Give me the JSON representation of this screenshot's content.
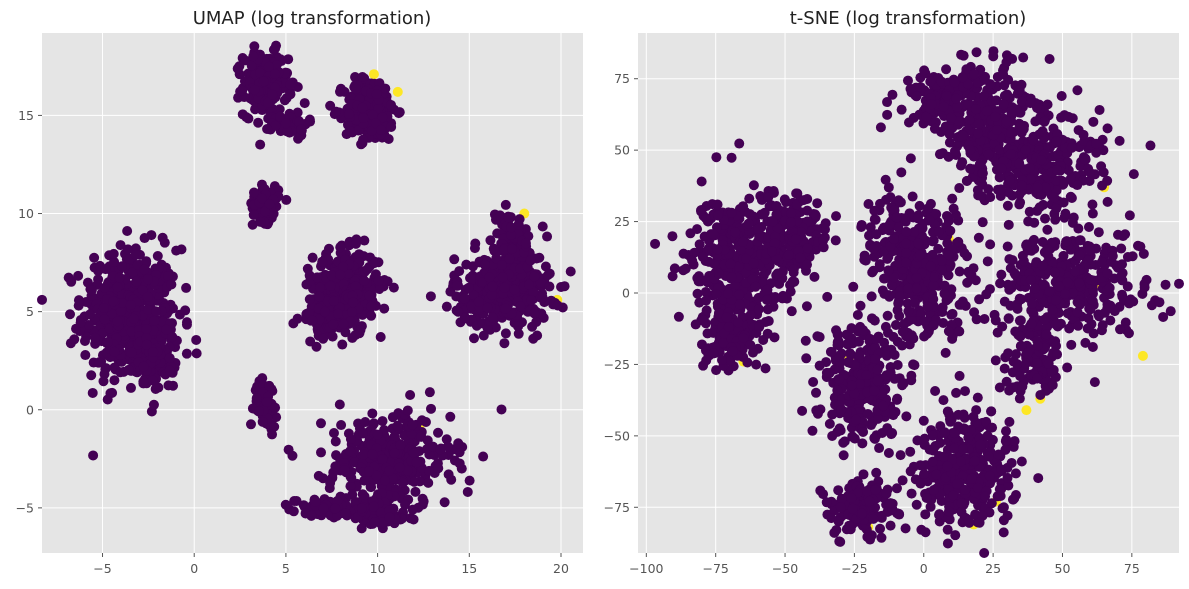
{
  "chart_data": [
    {
      "type": "scatter",
      "title": "UMAP (log transformation)",
      "xlabel": "",
      "ylabel": "",
      "xlim": [
        -8.3,
        21.2
      ],
      "ylim": [
        -7.3,
        19.2
      ],
      "xticks": [
        -5,
        0,
        5,
        10,
        15,
        20
      ],
      "yticks": [
        -5,
        0,
        5,
        10,
        15
      ],
      "xtick_labels": [
        "−5",
        "0",
        "5",
        "10",
        "15",
        "20"
      ],
      "ytick_labels": [
        "−5",
        "0",
        "5",
        "10",
        "15"
      ],
      "grid": true,
      "colors": {
        "majority": "#440154",
        "minority": "#fde725",
        "background": "#e5e5e5",
        "grid": "#ffffff"
      },
      "clusters": [
        {
          "center": [
            -3.5,
            4.8
          ],
          "spread": [
            1.3,
            1.7
          ],
          "count": 500
        },
        {
          "center": [
            -2.2,
            3.0
          ],
          "spread": [
            0.6,
            1.0
          ],
          "count": 120
        },
        {
          "center": [
            3.9,
            16.6
          ],
          "spread": [
            0.6,
            0.8
          ],
          "count": 220
        },
        {
          "center": [
            5.2,
            14.6
          ],
          "spread": [
            0.5,
            0.3
          ],
          "count": 60
        },
        {
          "center": [
            9.6,
            15.3
          ],
          "spread": [
            0.7,
            0.8
          ],
          "count": 260
        },
        {
          "center": [
            3.9,
            10.5
          ],
          "spread": [
            0.35,
            0.45
          ],
          "count": 90
        },
        {
          "center": [
            8.3,
            6.3
          ],
          "spread": [
            0.9,
            0.9
          ],
          "count": 300
        },
        {
          "center": [
            7.6,
            4.8
          ],
          "spread": [
            0.8,
            0.6
          ],
          "count": 120
        },
        {
          "center": [
            16.8,
            6.0
          ],
          "spread": [
            1.3,
            0.9
          ],
          "count": 350
        },
        {
          "center": [
            17.3,
            8.3
          ],
          "spread": [
            0.7,
            0.9
          ],
          "count": 120
        },
        {
          "center": [
            3.9,
            0.3
          ],
          "spread": [
            0.3,
            0.6
          ],
          "count": 60
        },
        {
          "center": [
            10.6,
            -2.6
          ],
          "spread": [
            1.7,
            1.2
          ],
          "count": 350
        },
        {
          "center": [
            7.2,
            -5.0
          ],
          "spread": [
            0.8,
            0.2
          ],
          "count": 80
        },
        {
          "center": [
            10.0,
            -5.3
          ],
          "spread": [
            0.8,
            0.4
          ],
          "count": 100
        }
      ],
      "highlight_points": [
        [
          9.8,
          17.1
        ],
        [
          11.1,
          16.2
        ],
        [
          18.0,
          10.0
        ],
        [
          16.2,
          6.1
        ],
        [
          19.8,
          5.6
        ],
        [
          12.3,
          -0.8
        ],
        [
          3.2,
          10.6
        ]
      ]
    },
    {
      "type": "scatter",
      "title": "t-SNE (log transformation)",
      "xlabel": "",
      "ylabel": "",
      "xlim": [
        -103,
        92
      ],
      "ylim": [
        -91,
        91
      ],
      "xticks": [
        -100,
        -75,
        -50,
        -25,
        0,
        25,
        50,
        75
      ],
      "yticks": [
        -75,
        -50,
        -25,
        0,
        25,
        50,
        75
      ],
      "xtick_labels": [
        "−100",
        "−75",
        "−50",
        "−25",
        "0",
        "25",
        "50",
        "75"
      ],
      "ytick_labels": [
        "−75",
        "−50",
        "−25",
        "0",
        "25",
        "50",
        "75"
      ],
      "grid": true,
      "colors": {
        "majority": "#440154",
        "minority": "#fde725",
        "background": "#e5e5e5",
        "grid": "#ffffff"
      },
      "clusters": [
        {
          "center": [
            -68,
            10
          ],
          "spread": [
            9,
            12
          ],
          "count": 350
        },
        {
          "center": [
            -48,
            20
          ],
          "spread": [
            7,
            8
          ],
          "count": 180
        },
        {
          "center": [
            -70,
            -15
          ],
          "spread": [
            6,
            6
          ],
          "count": 120
        },
        {
          "center": [
            -23,
            -32
          ],
          "spread": [
            7,
            11
          ],
          "count": 300
        },
        {
          "center": [
            -22,
            -75
          ],
          "spread": [
            6,
            5
          ],
          "count": 150
        },
        {
          "center": [
            15,
            -62
          ],
          "spread": [
            9,
            10
          ],
          "count": 350
        },
        {
          "center": [
            0,
            5
          ],
          "spread": [
            8,
            12
          ],
          "count": 300
        },
        {
          "center": [
            8,
            68
          ],
          "spread": [
            8,
            5
          ],
          "count": 150
        },
        {
          "center": [
            25,
            58
          ],
          "spread": [
            10,
            12
          ],
          "count": 260
        },
        {
          "center": [
            45,
            45
          ],
          "spread": [
            10,
            9
          ],
          "count": 250
        },
        {
          "center": [
            52,
            2
          ],
          "spread": [
            14,
            10
          ],
          "count": 400
        },
        {
          "center": [
            40,
            -25
          ],
          "spread": [
            5,
            7
          ],
          "count": 100
        },
        {
          "center": [
            -10,
            20
          ],
          "spread": [
            5,
            7
          ],
          "count": 100
        }
      ],
      "highlight_points": [
        [
          65,
          37
        ],
        [
          63,
          3
        ],
        [
          79,
          -22
        ],
        [
          42,
          -37
        ],
        [
          37,
          -41
        ],
        [
          26,
          -73
        ],
        [
          18,
          -81
        ],
        [
          -27,
          -23
        ],
        [
          -17,
          -43
        ],
        [
          -20,
          -82
        ],
        [
          -65,
          -24
        ],
        [
          9,
          19
        ]
      ]
    }
  ]
}
